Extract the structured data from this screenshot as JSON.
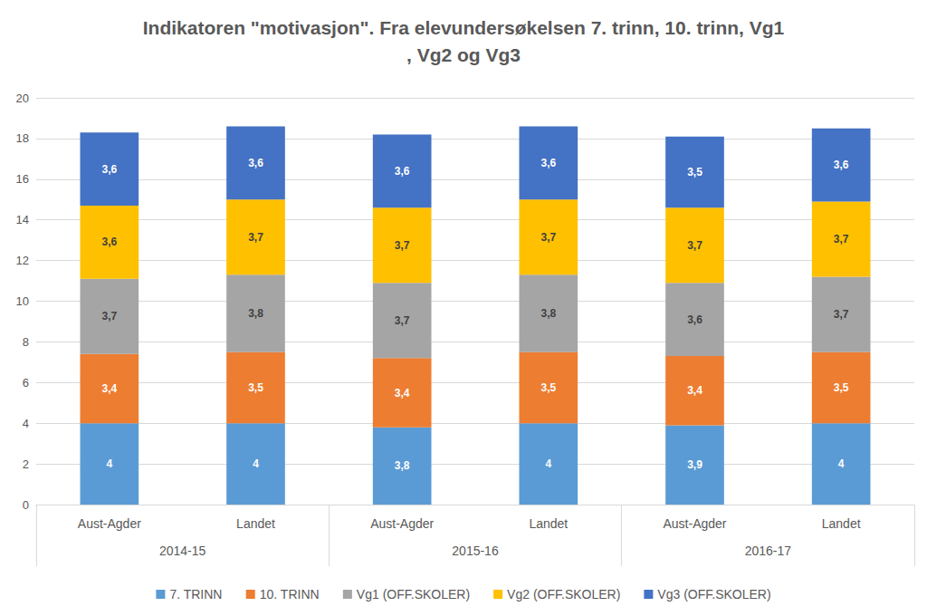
{
  "chart_data": {
    "type": "bar",
    "title": "Indikatoren \"motivasjon\". Fra elevundersøkelsen 7. trinn, 10. trinn, Vg1, Vg2 og Vg3",
    "categories": [
      "Aust-Agder",
      "Landet",
      "Aust-Agder",
      "Landet",
      "Aust-Agder",
      "Landet"
    ],
    "category_groups": [
      "2014-15",
      "2015-16",
      "2016-17"
    ],
    "stacked": true,
    "data_labels": true,
    "grid": true,
    "legend": "bottom",
    "ylim": [
      0,
      20
    ],
    "yticks": [
      0,
      2,
      4,
      6,
      8,
      10,
      12,
      14,
      16,
      18,
      20
    ],
    "series": [
      {
        "name": "7. TRINN",
        "color": "#5b9bd5",
        "values": [
          4,
          4,
          3.8,
          4,
          3.9,
          4
        ],
        "value_labels": [
          "4",
          "4",
          "3,8",
          "4",
          "3,9",
          "4"
        ]
      },
      {
        "name": "10. TRINN",
        "color": "#ed7d31",
        "values": [
          3.4,
          3.5,
          3.4,
          3.5,
          3.4,
          3.5
        ],
        "value_labels": [
          "3,4",
          "3,5",
          "3,4",
          "3,5",
          "3,4",
          "3,5"
        ]
      },
      {
        "name": "Vg1 (OFF.SKOLER)",
        "color": "#a5a5a5",
        "values": [
          3.7,
          3.8,
          3.7,
          3.8,
          3.6,
          3.7
        ],
        "value_labels": [
          "3,7",
          "3,8",
          "3,7",
          "3,8",
          "3,6",
          "3,7"
        ]
      },
      {
        "name": "Vg2 (OFF.SKOLER)",
        "color": "#ffc000",
        "values": [
          3.6,
          3.7,
          3.7,
          3.7,
          3.7,
          3.7
        ],
        "value_labels": [
          "3,6",
          "3,7",
          "3,7",
          "3,7",
          "3,7",
          "3,7"
        ]
      },
      {
        "name": "Vg3 (OFF.SKOLER)",
        "color": "#4472c4",
        "values": [
          3.6,
          3.6,
          3.6,
          3.6,
          3.5,
          3.6
        ],
        "value_labels": [
          "3,6",
          "3,6",
          "3,6",
          "3,6",
          "3,5",
          "3,6"
        ]
      }
    ]
  }
}
